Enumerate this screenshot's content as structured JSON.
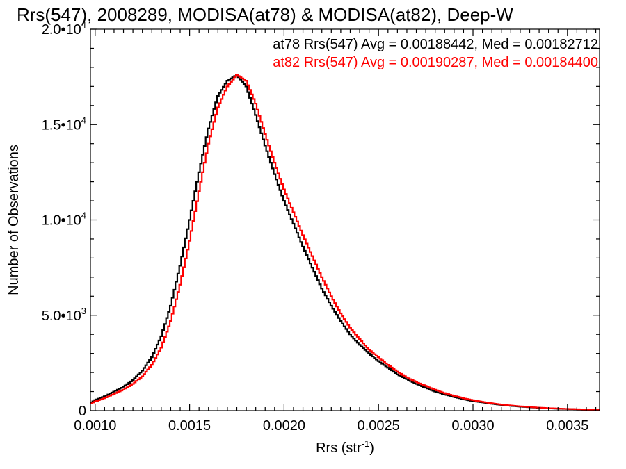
{
  "chart_data": {
    "type": "line",
    "title": "Rrs(547), 2008289, MODISA(at78) & MODISA(at82), Deep-W",
    "xlabel": "Rrs (str",
    "xlabel_sup": "-1",
    "xlabel_close": ")",
    "ylabel": "Number of Observations",
    "xlim": [
      0.000975,
      0.00367
    ],
    "ylim": [
      0,
      20000
    ],
    "x_ticks": [
      {
        "value": 0.001,
        "label": "0.0010"
      },
      {
        "value": 0.0015,
        "label": "0.0015"
      },
      {
        "value": 0.002,
        "label": "0.0020"
      },
      {
        "value": 0.0025,
        "label": "0.0025"
      },
      {
        "value": 0.003,
        "label": "0.0030"
      },
      {
        "value": 0.0035,
        "label": "0.0035"
      }
    ],
    "y_ticks": [
      {
        "value": 0,
        "mant": "0",
        "exp": ""
      },
      {
        "value": 5000,
        "mant": "5.0•10",
        "exp": "3"
      },
      {
        "value": 10000,
        "mant": "1.0•10",
        "exp": "4"
      },
      {
        "value": 15000,
        "mant": "1.5•10",
        "exp": "4"
      },
      {
        "value": 20000,
        "mant": "2.0•10",
        "exp": "4"
      }
    ],
    "grid": false,
    "legend_position": "top-right",
    "series": [
      {
        "name": "at78",
        "color": "#000000",
        "label": "at78 Rrs(547) Avg = 0.00188442, Med = 0.00182712",
        "avg": 0.00188442,
        "median": 0.00182712,
        "x": [
          0.000975,
          0.001,
          0.00105,
          0.0011,
          0.00115,
          0.0012,
          0.00125,
          0.0013,
          0.00135,
          0.0014,
          0.00145,
          0.0015,
          0.00155,
          0.0016,
          0.00165,
          0.0017,
          0.00175,
          0.0018,
          0.00185,
          0.0019,
          0.00195,
          0.002,
          0.00205,
          0.0021,
          0.00215,
          0.0022,
          0.00225,
          0.0023,
          0.00235,
          0.0024,
          0.00245,
          0.0025,
          0.00255,
          0.0026,
          0.00265,
          0.0027,
          0.00275,
          0.0028,
          0.00285,
          0.0029,
          0.00295,
          0.003,
          0.00305,
          0.0031,
          0.00315,
          0.0032,
          0.00325,
          0.0033,
          0.00335,
          0.0034,
          0.00345,
          0.0035,
          0.00355,
          0.0036,
          0.00367
        ],
        "y": [
          400,
          550,
          750,
          1000,
          1250,
          1600,
          2100,
          2800,
          3900,
          5500,
          7600,
          10000,
          12500,
          14800,
          16500,
          17300,
          17600,
          17000,
          15500,
          13900,
          12400,
          11000,
          9800,
          8600,
          7500,
          6400,
          5500,
          4700,
          4000,
          3450,
          3000,
          2600,
          2250,
          1900,
          1650,
          1400,
          1200,
          1000,
          850,
          720,
          600,
          500,
          430,
          360,
          300,
          250,
          210,
          175,
          145,
          120,
          100,
          85,
          70,
          60,
          45
        ]
      },
      {
        "name": "at82",
        "color": "#ff0000",
        "label": "at82 Rrs(547) Avg = 0.00190287, Med = 0.00184400",
        "avg": 0.00190287,
        "median": 0.001844,
        "x": [
          0.000975,
          0.001,
          0.00105,
          0.0011,
          0.00115,
          0.0012,
          0.00125,
          0.0013,
          0.00135,
          0.0014,
          0.00145,
          0.0015,
          0.00155,
          0.0016,
          0.00165,
          0.0017,
          0.00175,
          0.0018,
          0.00185,
          0.0019,
          0.00195,
          0.002,
          0.00205,
          0.0021,
          0.00215,
          0.0022,
          0.00225,
          0.0023,
          0.00235,
          0.0024,
          0.00245,
          0.0025,
          0.00255,
          0.0026,
          0.00265,
          0.0027,
          0.00275,
          0.0028,
          0.00285,
          0.0029,
          0.00295,
          0.003,
          0.00305,
          0.0031,
          0.00315,
          0.0032,
          0.00325,
          0.0033,
          0.00335,
          0.0034,
          0.00345,
          0.0035,
          0.00355,
          0.0036,
          0.00367
        ],
        "y": [
          350,
          480,
          650,
          880,
          1100,
          1400,
          1800,
          2400,
          3300,
          4700,
          6600,
          8900,
          11500,
          14000,
          15900,
          17000,
          17600,
          17300,
          16100,
          14500,
          13000,
          11600,
          10400,
          9200,
          8100,
          7000,
          6000,
          5100,
          4350,
          3750,
          3200,
          2800,
          2400,
          2050,
          1750,
          1500,
          1300,
          1100,
          920,
          780,
          650,
          550,
          460,
          390,
          320,
          270,
          225,
          190,
          155,
          130,
          110,
          90,
          75,
          62,
          50
        ]
      }
    ]
  }
}
